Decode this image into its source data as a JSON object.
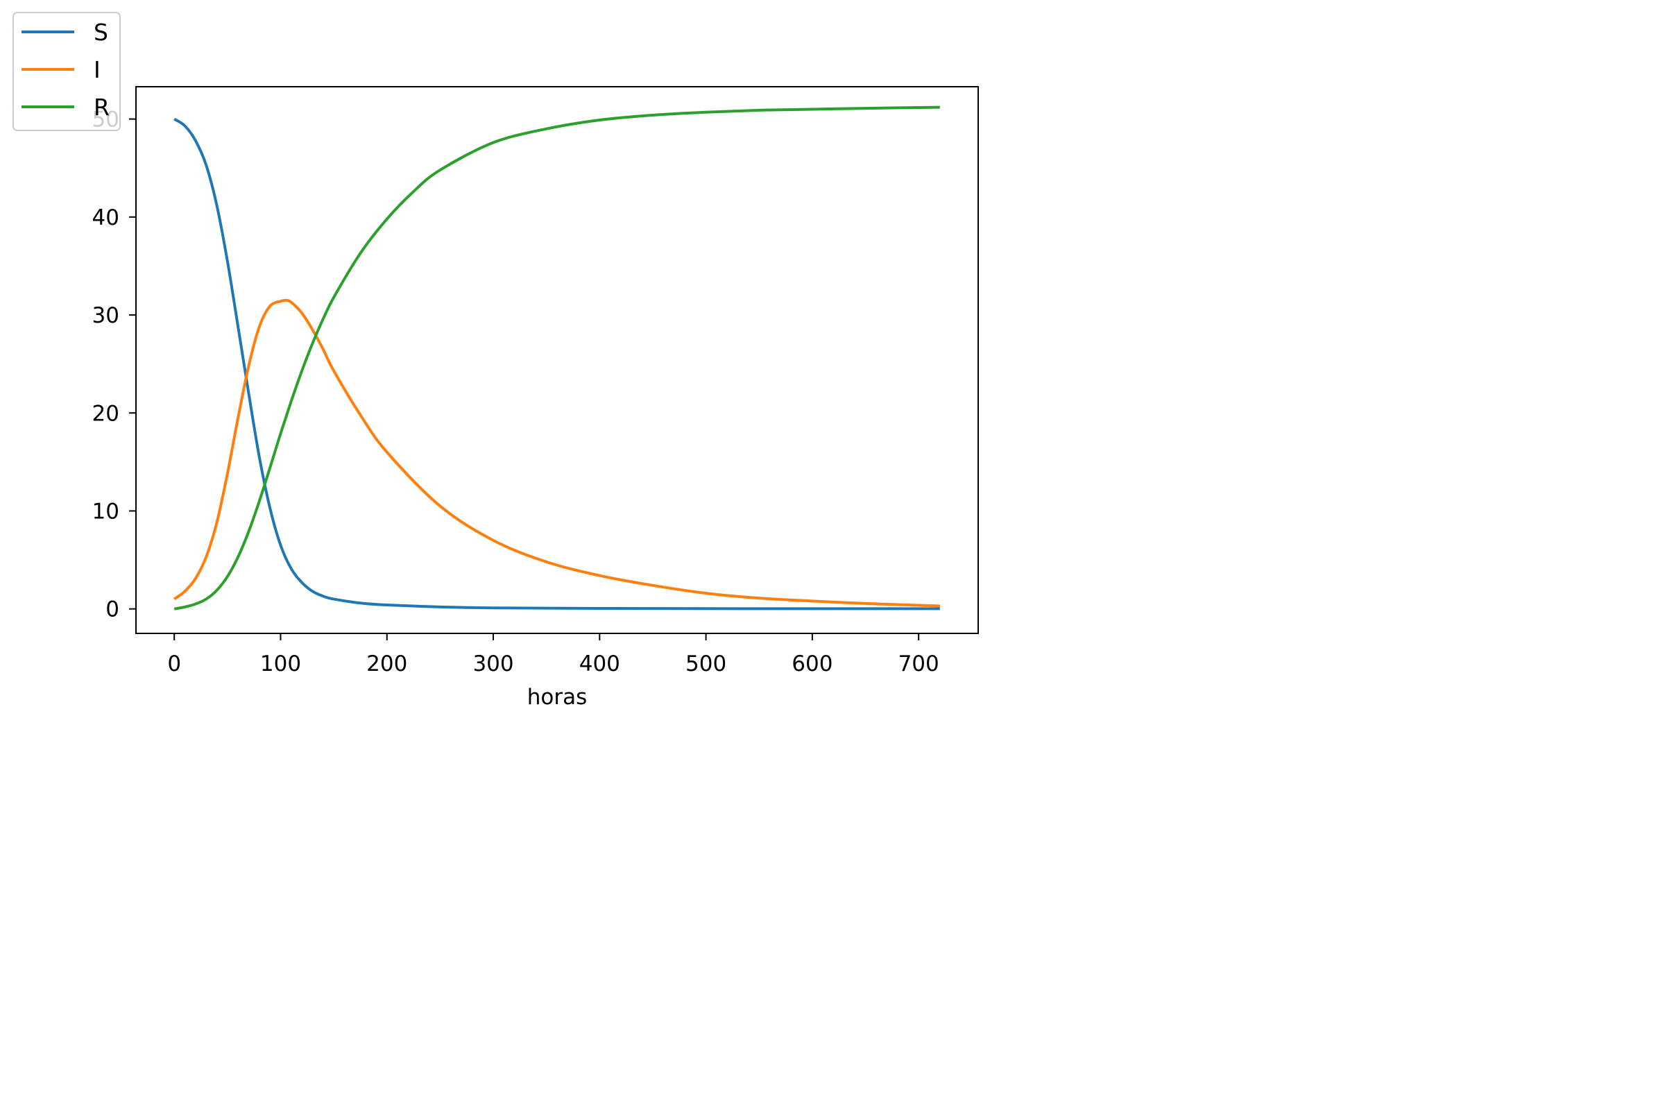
{
  "chart_data": {
    "type": "line",
    "xlabel": "horas",
    "ylabel": "",
    "xlim": [
      -36,
      756
    ],
    "ylim": [
      -2.5,
      53.3
    ],
    "xticks": [
      0,
      100,
      200,
      300,
      400,
      500,
      600,
      700
    ],
    "yticks": [
      0,
      10,
      20,
      30,
      40,
      50
    ],
    "grid": false,
    "legend": "top-left",
    "series": [
      {
        "name": "S",
        "color": "#1f77b4",
        "x": [
          0,
          10,
          20,
          30,
          40,
          50,
          60,
          70,
          80,
          90,
          100,
          110,
          120,
          130,
          140,
          150,
          175,
          200,
          250,
          300,
          400,
          500,
          600,
          720
        ],
        "y": [
          50,
          49.3,
          47.8,
          45.3,
          41.2,
          35.5,
          28.8,
          22.0,
          15.5,
          10.3,
          6.5,
          4.1,
          2.7,
          1.8,
          1.3,
          1.0,
          0.6,
          0.4,
          0.2,
          0.1,
          0.05,
          0.03,
          0.02,
          0.02
        ]
      },
      {
        "name": "I",
        "color": "#ff7f0e",
        "x": [
          0,
          10,
          20,
          30,
          40,
          50,
          60,
          70,
          80,
          90,
          100,
          105,
          110,
          120,
          130,
          140,
          150,
          175,
          200,
          250,
          300,
          350,
          400,
          450,
          500,
          550,
          600,
          650,
          720
        ],
        "y": [
          1.0,
          1.8,
          3.1,
          5.3,
          8.8,
          13.8,
          19.5,
          24.8,
          28.8,
          30.9,
          31.4,
          31.5,
          31.3,
          30.2,
          28.5,
          26.5,
          24.3,
          19.8,
          16.0,
          10.5,
          7.0,
          4.8,
          3.4,
          2.4,
          1.6,
          1.1,
          0.8,
          0.55,
          0.3
        ]
      },
      {
        "name": "R",
        "color": "#2ca02c",
        "x": [
          0,
          10,
          20,
          30,
          40,
          50,
          60,
          70,
          80,
          90,
          100,
          110,
          120,
          130,
          140,
          150,
          175,
          200,
          225,
          250,
          300,
          350,
          400,
          450,
          500,
          550,
          600,
          650,
          720
        ],
        "y": [
          0,
          0.2,
          0.5,
          1.0,
          1.9,
          3.3,
          5.3,
          7.9,
          11.0,
          14.4,
          17.9,
          21.2,
          24.3,
          27.1,
          29.6,
          31.8,
          36.3,
          39.8,
          42.6,
          44.8,
          47.6,
          49.0,
          49.9,
          50.4,
          50.7,
          50.9,
          51.0,
          51.1,
          51.2
        ]
      }
    ]
  }
}
